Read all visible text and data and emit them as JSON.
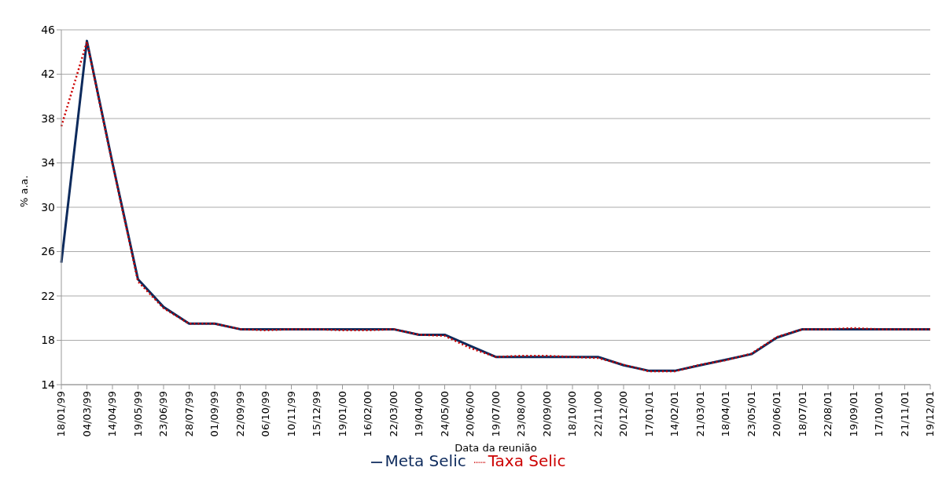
{
  "chart_data": {
    "type": "line",
    "xlabel": "Data da reunião",
    "ylabel": "% a.a.",
    "categories": [
      "18/01/99",
      "04/03/99",
      "14/04/99",
      "19/05/99",
      "23/06/99",
      "28/07/99",
      "01/09/99",
      "22/09/99",
      "06/10/99",
      "10/11/99",
      "15/12/99",
      "19/01/00",
      "16/02/00",
      "22/03/00",
      "19/04/00",
      "24/05/00",
      "20/06/00",
      "19/07/00",
      "23/08/00",
      "20/09/00",
      "18/10/00",
      "22/11/00",
      "20/12/00",
      "17/01/01",
      "14/02/01",
      "21/03/01",
      "18/04/01",
      "23/05/01",
      "20/06/01",
      "18/07/01",
      "22/08/01",
      "19/09/01",
      "17/10/01",
      "21/11/01",
      "19/12/01"
    ],
    "series": [
      {
        "name": "Meta Selic",
        "color": "#0d2a5c",
        "line_style": "solid",
        "values": [
          25,
          45,
          34,
          23.5,
          21,
          19.5,
          19.5,
          19,
          19,
          19,
          19,
          19,
          19,
          19,
          18.5,
          18.5,
          17.5,
          16.5,
          16.5,
          16.5,
          16.5,
          16.5,
          15.75,
          15.25,
          15.25,
          15.75,
          16.25,
          16.75,
          18.25,
          19,
          19,
          19,
          19,
          19,
          19
        ]
      },
      {
        "name": "Taxa Selic",
        "color": "#cc0000",
        "line_style": "dotted",
        "values": [
          37.3,
          44.9,
          33.9,
          23.3,
          20.9,
          19.5,
          19.5,
          19.0,
          18.9,
          19.0,
          19.0,
          18.9,
          18.9,
          19.0,
          18.5,
          18.4,
          17.3,
          16.5,
          16.6,
          16.6,
          16.5,
          16.4,
          15.8,
          15.2,
          15.2,
          15.8,
          16.2,
          16.8,
          18.3,
          19.0,
          19.0,
          19.1,
          19.0,
          19.0,
          19.0
        ]
      }
    ],
    "ylim": [
      14,
      46
    ],
    "yticks": [
      14,
      18,
      22,
      26,
      30,
      34,
      38,
      42,
      46
    ],
    "grid": "y",
    "legend": "bottom",
    "marker": "none"
  }
}
